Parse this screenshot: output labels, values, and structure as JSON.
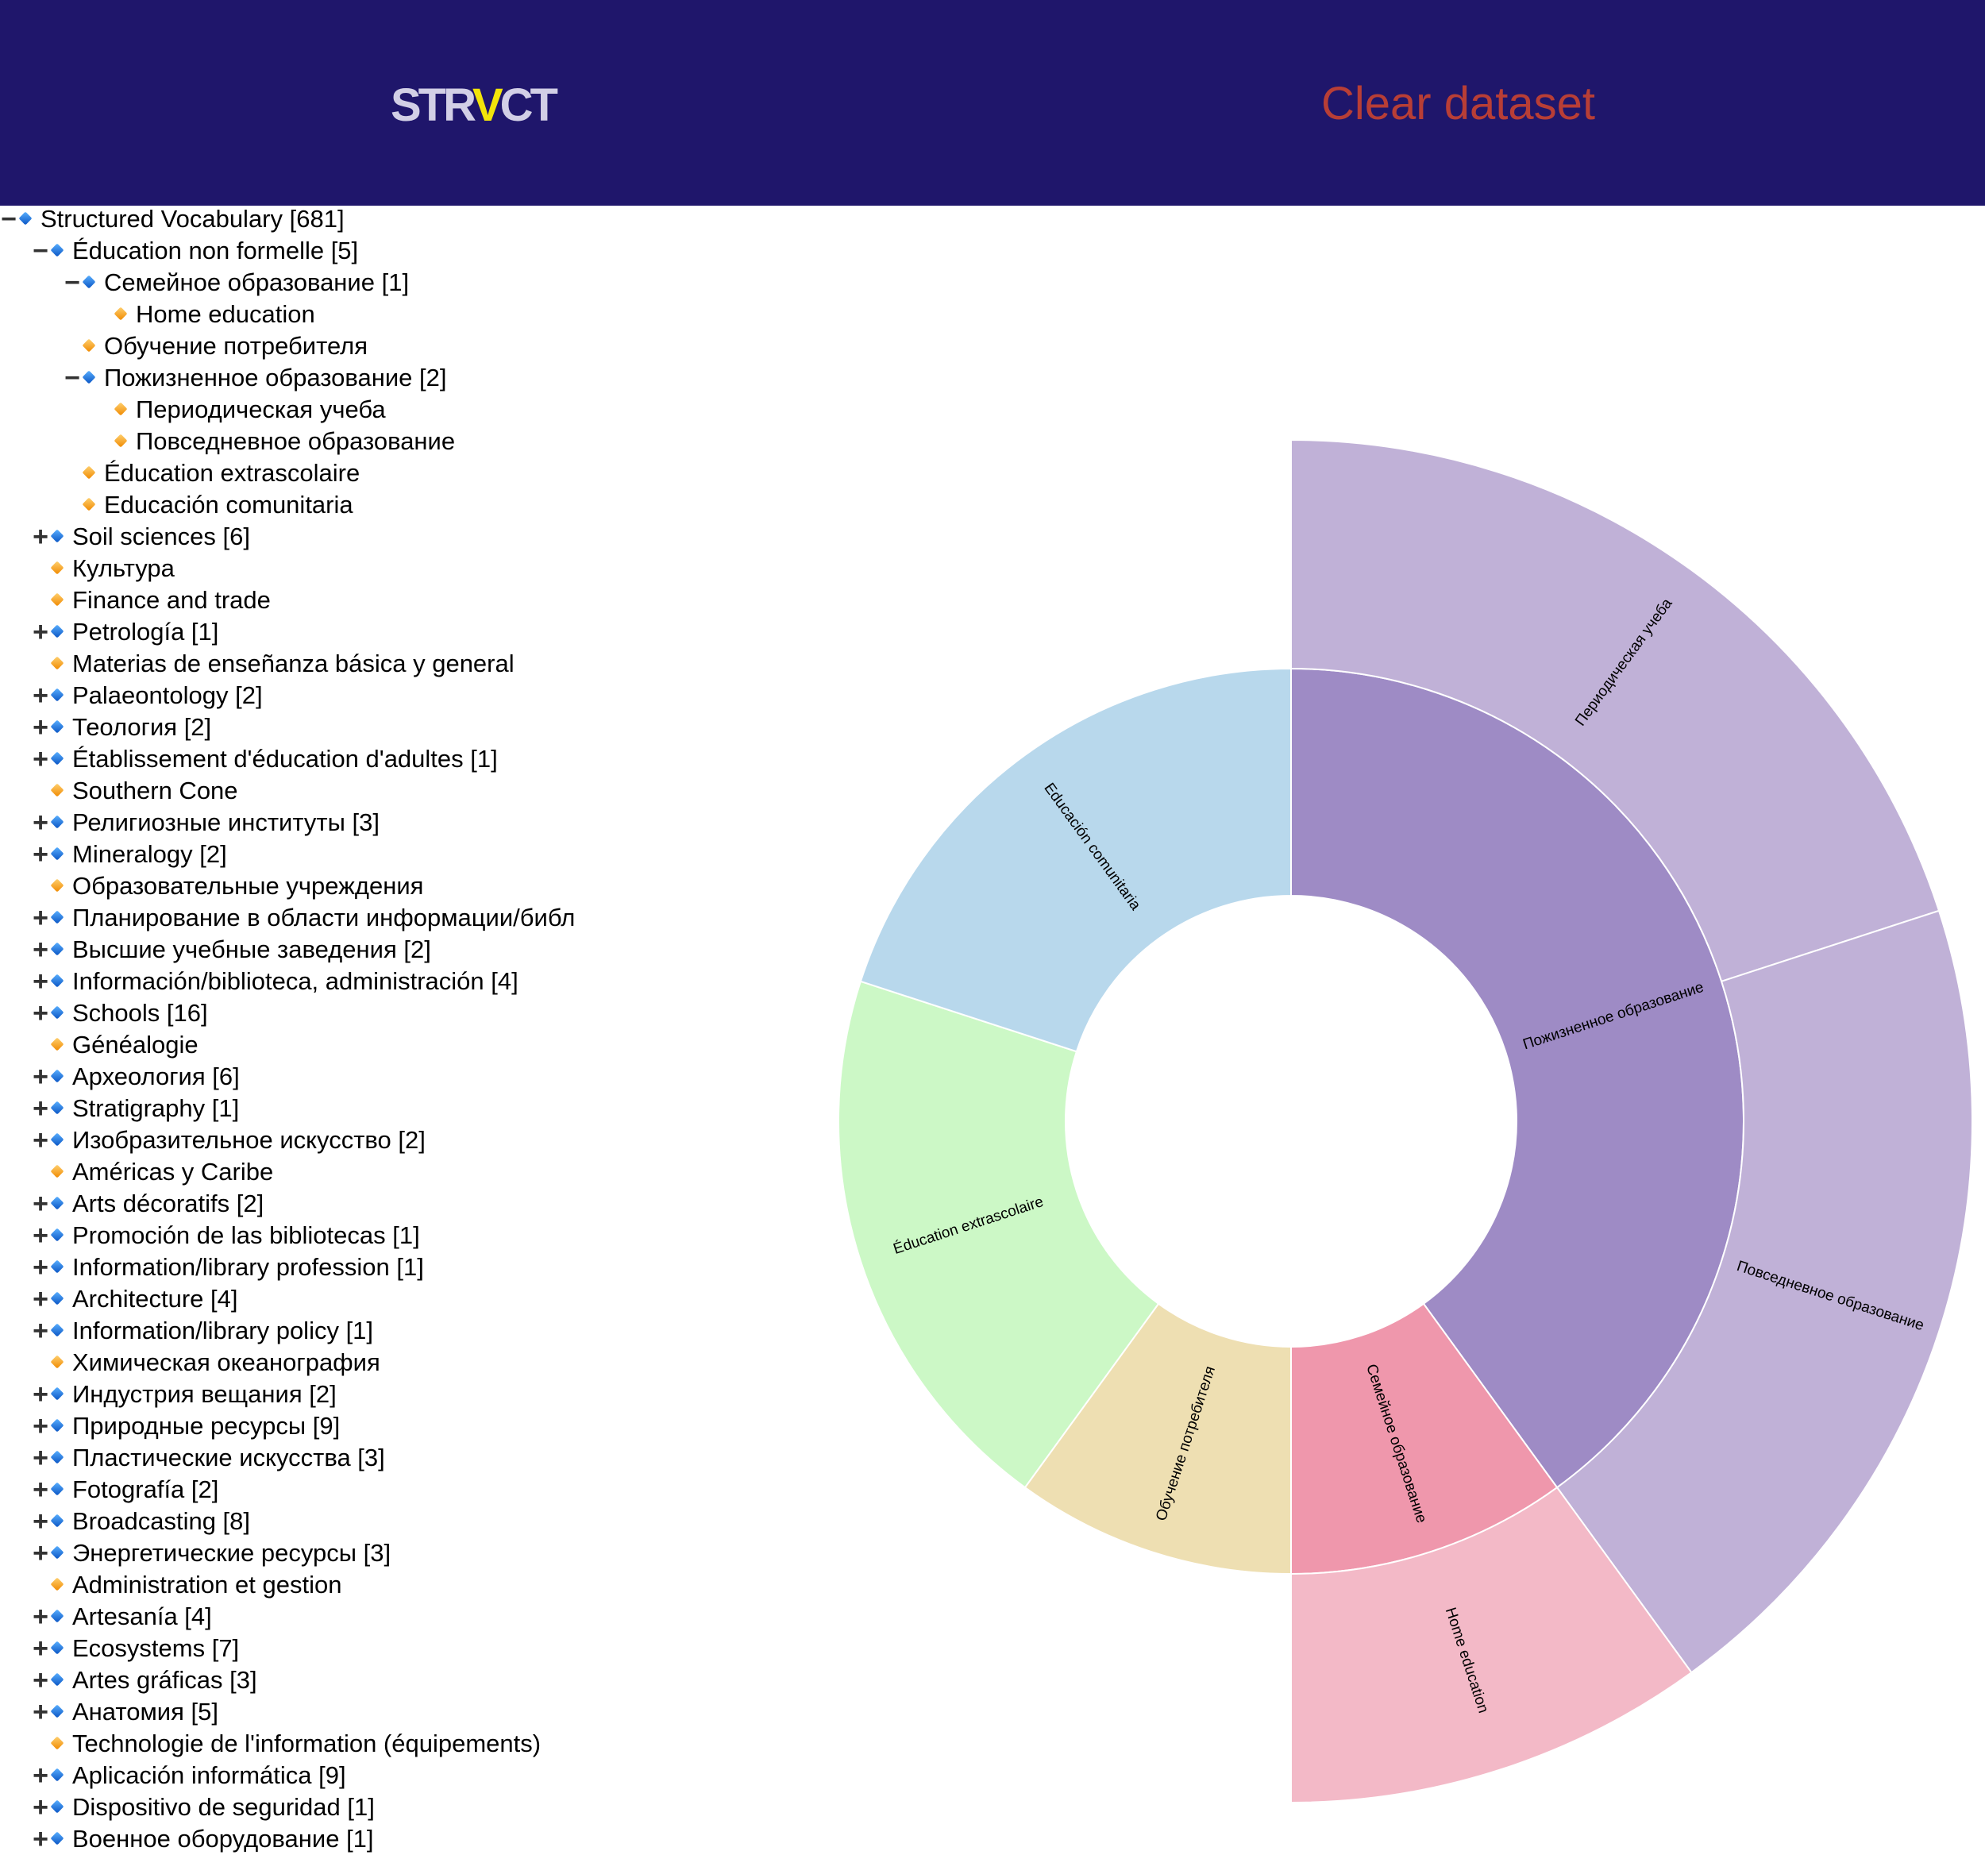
{
  "header": {
    "logo": {
      "part1": "STR",
      "v": "V",
      "part2": "CT"
    },
    "clear_label": "Clear dataset"
  },
  "tree": [
    {
      "label": "Structured Vocabulary [681]",
      "depth": 0,
      "toggle": "−",
      "color": "blue"
    },
    {
      "label": "Éducation non formelle [5]",
      "depth": 1,
      "toggle": "−",
      "color": "blue"
    },
    {
      "label": "Семейное образование [1]",
      "depth": 2,
      "toggle": "−",
      "color": "blue"
    },
    {
      "label": "Home education",
      "depth": 3,
      "toggle": "",
      "color": "orange"
    },
    {
      "label": "Обучение потребителя",
      "depth": 2,
      "toggle": "",
      "color": "orange"
    },
    {
      "label": "Пожизненное образование [2]",
      "depth": 2,
      "toggle": "−",
      "color": "blue"
    },
    {
      "label": "Периодическая учеба",
      "depth": 3,
      "toggle": "",
      "color": "orange"
    },
    {
      "label": "Повседневное образование",
      "depth": 3,
      "toggle": "",
      "color": "orange"
    },
    {
      "label": "Éducation extrascolaire",
      "depth": 2,
      "toggle": "",
      "color": "orange"
    },
    {
      "label": "Educación comunitaria",
      "depth": 2,
      "toggle": "",
      "color": "orange"
    },
    {
      "label": "Soil sciences [6]",
      "depth": 1,
      "toggle": "+",
      "color": "blue"
    },
    {
      "label": "Культура",
      "depth": 1,
      "toggle": "",
      "color": "orange"
    },
    {
      "label": "Finance and trade",
      "depth": 1,
      "toggle": "",
      "color": "orange"
    },
    {
      "label": "Petrología [1]",
      "depth": 1,
      "toggle": "+",
      "color": "blue"
    },
    {
      "label": "Materias de enseñanza básica y general",
      "depth": 1,
      "toggle": "",
      "color": "orange"
    },
    {
      "label": "Palaeontology [2]",
      "depth": 1,
      "toggle": "+",
      "color": "blue"
    },
    {
      "label": "Теология [2]",
      "depth": 1,
      "toggle": "+",
      "color": "blue"
    },
    {
      "label": "Établissement d'éducation d'adultes [1]",
      "depth": 1,
      "toggle": "+",
      "color": "blue"
    },
    {
      "label": "Southern Cone",
      "depth": 1,
      "toggle": "",
      "color": "orange"
    },
    {
      "label": "Религиозные институты [3]",
      "depth": 1,
      "toggle": "+",
      "color": "blue"
    },
    {
      "label": "Mineralogy [2]",
      "depth": 1,
      "toggle": "+",
      "color": "blue"
    },
    {
      "label": "Образовательные учреждения",
      "depth": 1,
      "toggle": "",
      "color": "orange"
    },
    {
      "label": "Планирование в области информации/библ",
      "depth": 1,
      "toggle": "+",
      "color": "blue"
    },
    {
      "label": "Высшие учебные заведения [2]",
      "depth": 1,
      "toggle": "+",
      "color": "blue"
    },
    {
      "label": "Información/biblioteca, administración [4]",
      "depth": 1,
      "toggle": "+",
      "color": "blue"
    },
    {
      "label": "Schools [16]",
      "depth": 1,
      "toggle": "+",
      "color": "blue"
    },
    {
      "label": "Généalogie",
      "depth": 1,
      "toggle": "",
      "color": "orange"
    },
    {
      "label": "Археология [6]",
      "depth": 1,
      "toggle": "+",
      "color": "blue"
    },
    {
      "label": "Stratigraphy [1]",
      "depth": 1,
      "toggle": "+",
      "color": "blue"
    },
    {
      "label": "Изобразительное искусство [2]",
      "depth": 1,
      "toggle": "+",
      "color": "blue"
    },
    {
      "label": "Américas y Caribe",
      "depth": 1,
      "toggle": "",
      "color": "orange"
    },
    {
      "label": "Arts décoratifs [2]",
      "depth": 1,
      "toggle": "+",
      "color": "blue"
    },
    {
      "label": "Promoción de las bibliotecas [1]",
      "depth": 1,
      "toggle": "+",
      "color": "blue"
    },
    {
      "label": "Information/library profession [1]",
      "depth": 1,
      "toggle": "+",
      "color": "blue"
    },
    {
      "label": "Architecture [4]",
      "depth": 1,
      "toggle": "+",
      "color": "blue"
    },
    {
      "label": "Information/library policy [1]",
      "depth": 1,
      "toggle": "+",
      "color": "blue"
    },
    {
      "label": "Химическая океанография",
      "depth": 1,
      "toggle": "",
      "color": "orange"
    },
    {
      "label": "Индустрия вещания [2]",
      "depth": 1,
      "toggle": "+",
      "color": "blue"
    },
    {
      "label": "Природные ресурсы [9]",
      "depth": 1,
      "toggle": "+",
      "color": "blue"
    },
    {
      "label": "Пластические искусства [3]",
      "depth": 1,
      "toggle": "+",
      "color": "blue"
    },
    {
      "label": "Fotografía [2]",
      "depth": 1,
      "toggle": "+",
      "color": "blue"
    },
    {
      "label": "Broadcasting [8]",
      "depth": 1,
      "toggle": "+",
      "color": "blue"
    },
    {
      "label": "Энергетические ресурсы [3]",
      "depth": 1,
      "toggle": "+",
      "color": "blue"
    },
    {
      "label": "Administration et gestion",
      "depth": 1,
      "toggle": "",
      "color": "orange"
    },
    {
      "label": "Artesanía [4]",
      "depth": 1,
      "toggle": "+",
      "color": "blue"
    },
    {
      "label": "Ecosystems [7]",
      "depth": 1,
      "toggle": "+",
      "color": "blue"
    },
    {
      "label": "Artes gráficas [3]",
      "depth": 1,
      "toggle": "+",
      "color": "blue"
    },
    {
      "label": "Анатомия [5]",
      "depth": 1,
      "toggle": "+",
      "color": "blue"
    },
    {
      "label": "Technologie de l'information (équipements)",
      "depth": 1,
      "toggle": "",
      "color": "orange"
    },
    {
      "label": "Aplicación informática [9]",
      "depth": 1,
      "toggle": "+",
      "color": "blue"
    },
    {
      "label": "Dispositivo de seguridad [1]",
      "depth": 1,
      "toggle": "+",
      "color": "blue"
    },
    {
      "label": "Военное оборудование [1]",
      "depth": 1,
      "toggle": "+",
      "color": "blue"
    }
  ],
  "chart_data": {
    "type": "sunburst",
    "rings": [
      {
        "level": 1,
        "segments": [
          {
            "label": "Пожизненное образование",
            "start_deg": 0,
            "end_deg": 144,
            "color": "#9e8bc5"
          },
          {
            "label": "Семейное образование",
            "start_deg": 144,
            "end_deg": 180,
            "color": "#ef97ac"
          },
          {
            "label": "Обучение потребителя",
            "start_deg": 180,
            "end_deg": 216,
            "color": "#eedfb2"
          },
          {
            "label": "Éducation extrascolaire",
            "start_deg": 216,
            "end_deg": 288,
            "color": "#ccf8c6"
          },
          {
            "label": "Educación comunitaria",
            "start_deg": 288,
            "end_deg": 360,
            "color": "#b8d8ec"
          }
        ]
      },
      {
        "level": 2,
        "segments": [
          {
            "label": "Периодическая учеба",
            "start_deg": 0,
            "end_deg": 72,
            "color": "#c0b1d7"
          },
          {
            "label": "Повседневное образование",
            "start_deg": 72,
            "end_deg": 144,
            "color": "#c0b1d7"
          },
          {
            "label": "Home education",
            "start_deg": 144,
            "end_deg": 180,
            "color": "#f3b9c7"
          }
        ]
      }
    ]
  }
}
